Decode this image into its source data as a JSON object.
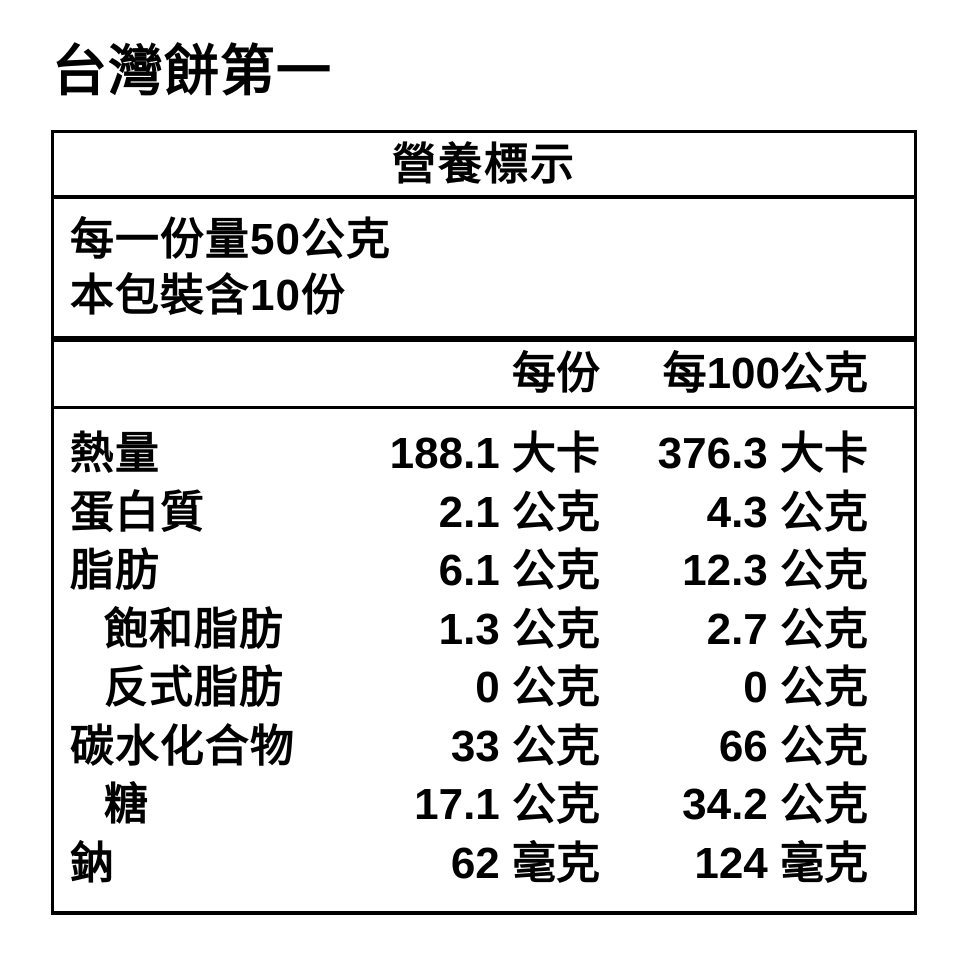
{
  "page": {
    "title": "台灣餅第一"
  },
  "colors": {
    "text": "#000000",
    "background": "#ffffff",
    "border": "#000000"
  },
  "label": {
    "header": "營養標示",
    "serving_size": "每一份量50公克",
    "servings_per_package": "本包裝含10份",
    "columns": [
      "每份",
      "每100公克"
    ],
    "rows": [
      {
        "name": "熱量",
        "per_serving": "188.1 大卡",
        "per_100g": "376.3 大卡"
      },
      {
        "name": "蛋白質",
        "per_serving": "2.1 公克",
        "per_100g": "4.3 公克"
      },
      {
        "name": "脂肪",
        "per_serving": "6.1 公克",
        "per_100g": "12.3 公克"
      },
      {
        "name": "飽和脂肪",
        "per_serving": "1.3 公克",
        "per_100g": "2.7 公克"
      },
      {
        "name": "反式脂肪",
        "per_serving": "0 公克",
        "per_100g": "0 公克"
      },
      {
        "name": "碳水化合物",
        "per_serving": "33 公克",
        "per_100g": "66 公克"
      },
      {
        "name": "糖",
        "per_serving": "17.1 公克",
        "per_100g": "34.2 公克"
      },
      {
        "name": "鈉",
        "per_serving": "62 毫克",
        "per_100g": "124 毫克"
      }
    ]
  }
}
